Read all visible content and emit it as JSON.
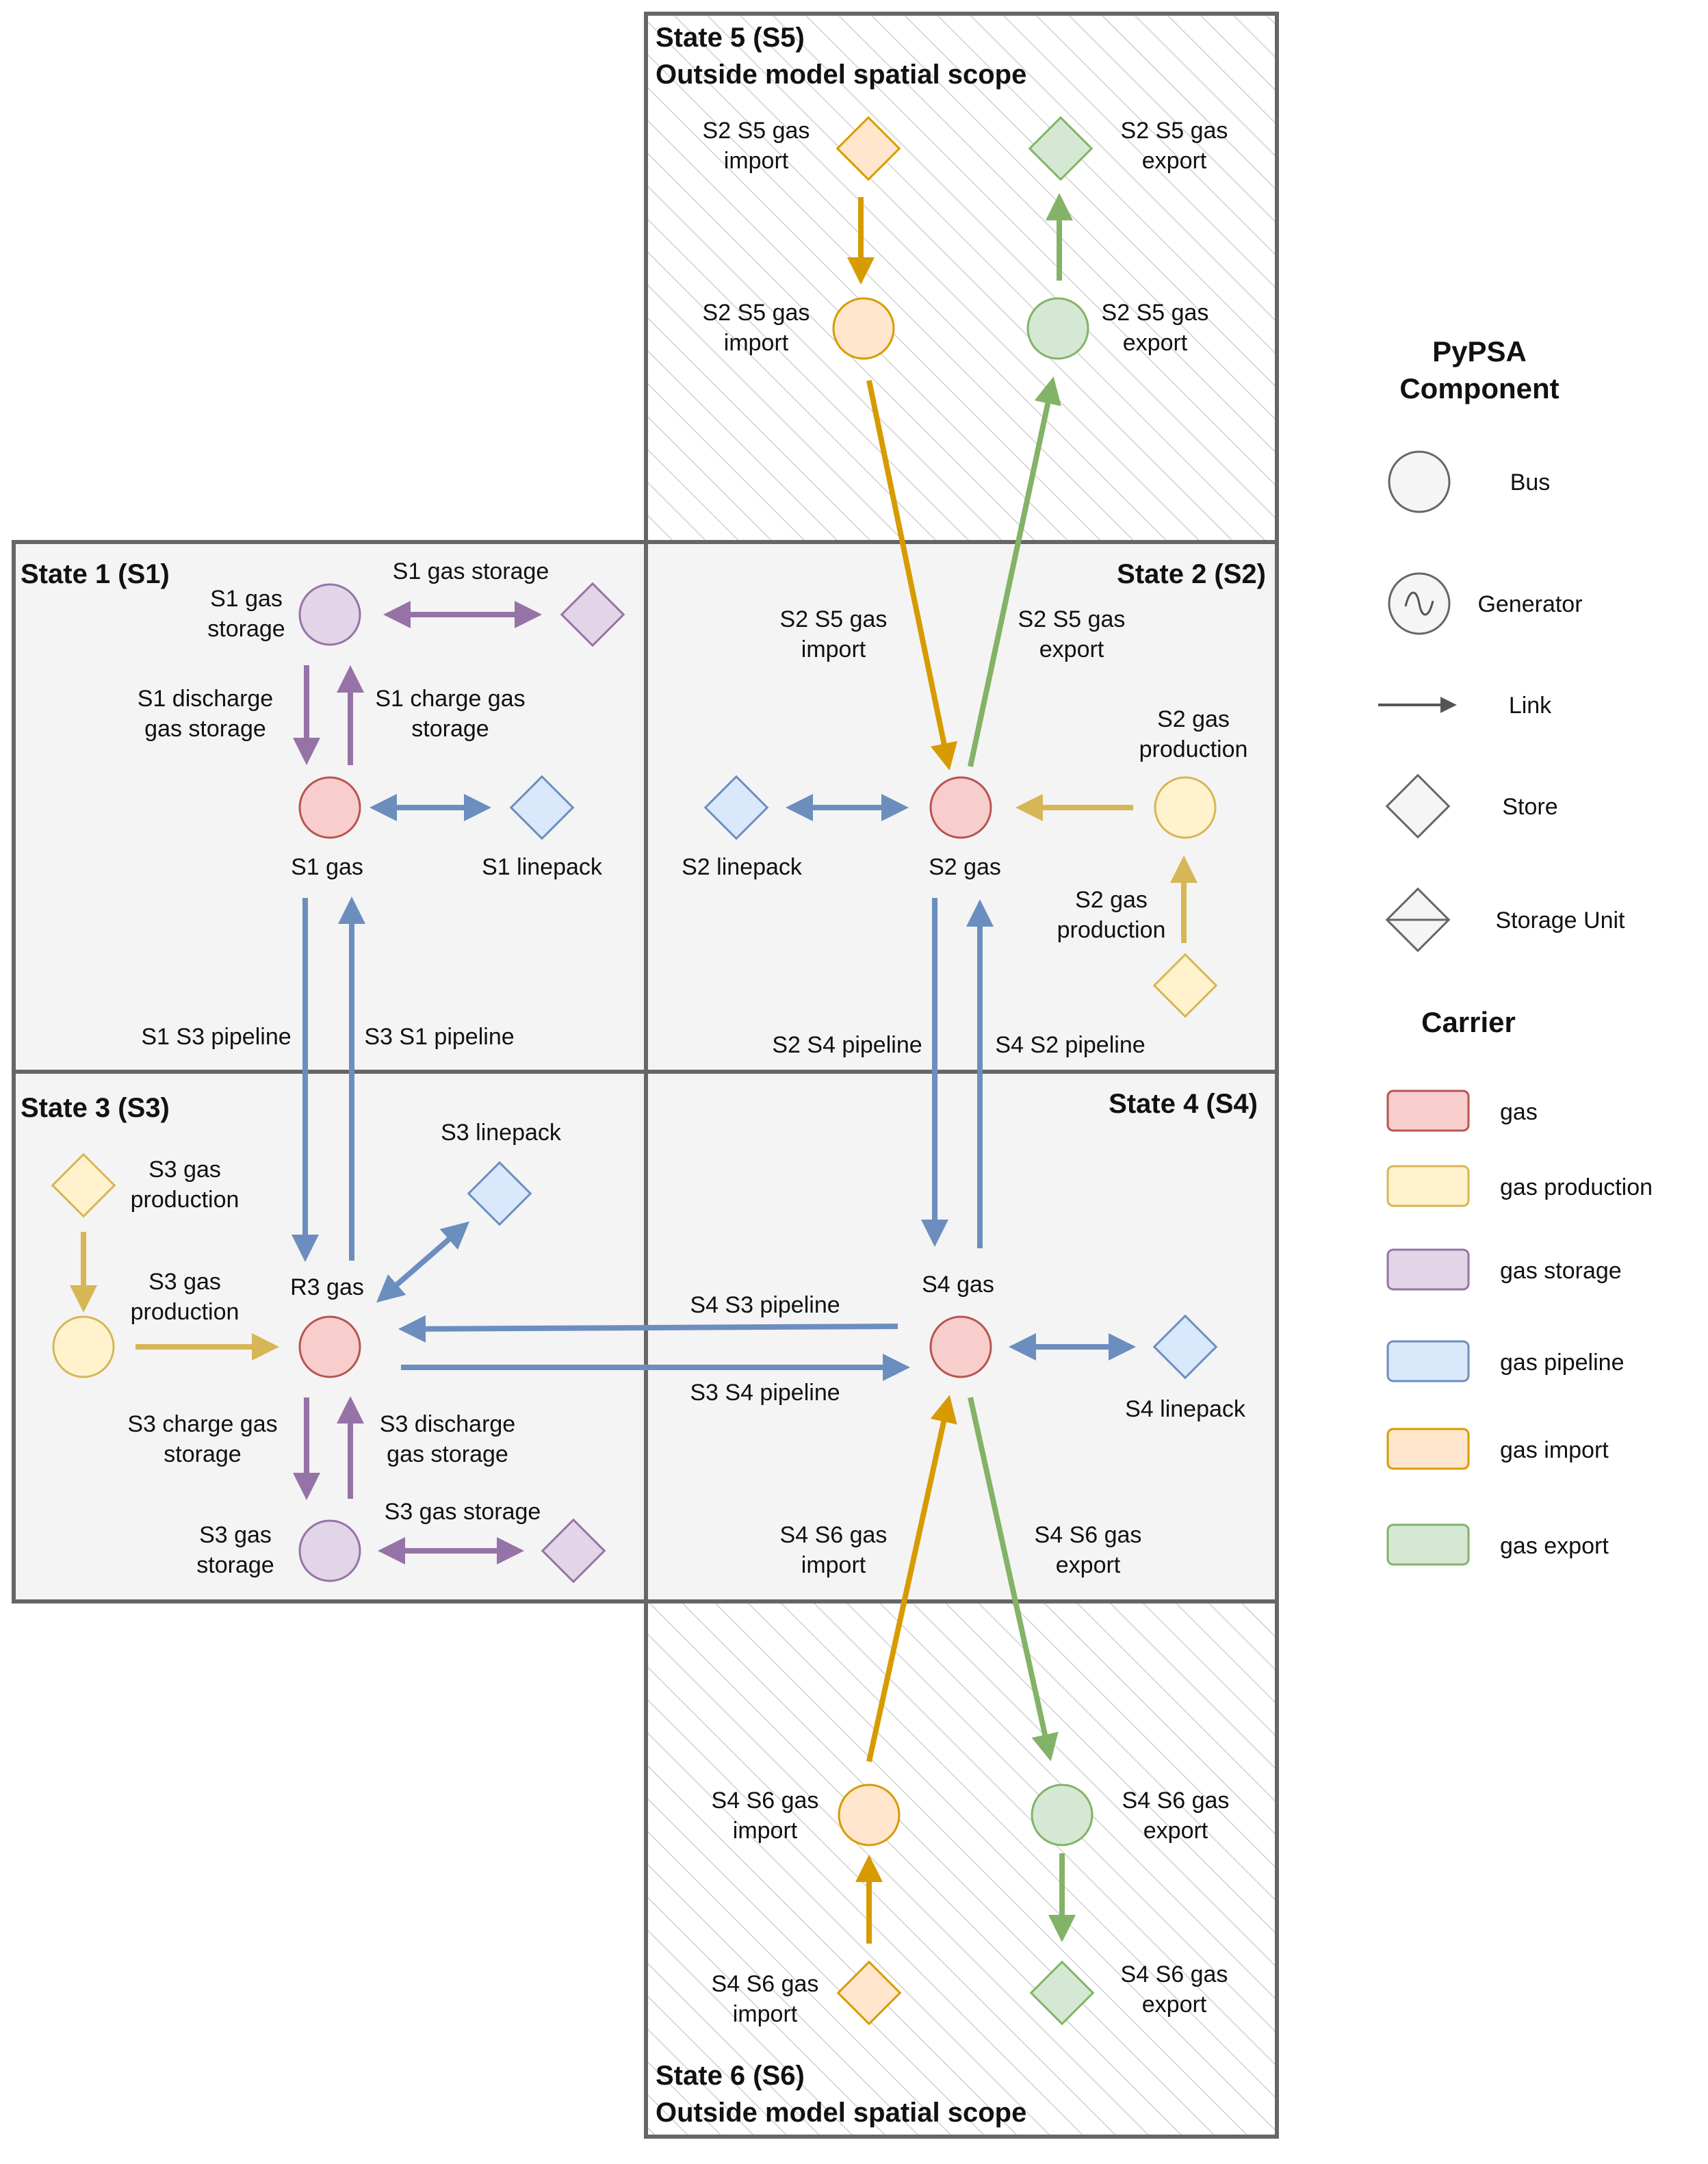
{
  "colors": {
    "gas": {
      "fill": "#f8cecc",
      "stroke": "#b85450"
    },
    "gas_production": {
      "fill": "#fff2cc",
      "stroke": "#d6b656"
    },
    "gas_storage": {
      "fill": "#e1d5e7",
      "stroke": "#9673a6"
    },
    "gas_pipeline": {
      "fill": "#dae8fc",
      "stroke": "#6c8ebf"
    },
    "gas_import": {
      "fill": "#ffe6cc",
      "stroke": "#d79b00"
    },
    "gas_export": {
      "fill": "#d5e8d4",
      "stroke": "#82b366"
    },
    "neutral": {
      "fill": "#f5f5f5",
      "stroke": "#666666"
    },
    "region_fill": "#f4f4f4",
    "region_stroke": "#666666",
    "hatch": "#d0d0d0",
    "arrow_pipeline": "#6c8ebf",
    "arrow_storage": "#9673a6",
    "arrow_production": "#d6b656",
    "arrow_import": "#d79b00",
    "arrow_export": "#82b366"
  },
  "regions": {
    "s5": {
      "title1": "State 5 (S5)",
      "title2": "Outside model spatial scope"
    },
    "s1": {
      "title": "State 1 (S1)"
    },
    "s2": {
      "title": "State 2 (S2)"
    },
    "s3": {
      "title": "State 3 (S3)"
    },
    "s4": {
      "title": "State 4 (S4)"
    },
    "s6": {
      "title1": "State 6 (S6)",
      "title2": "Outside model spatial scope"
    }
  },
  "labels": {
    "s5_import_store": [
      "S2 S5 gas",
      "import"
    ],
    "s5_export_store": [
      "S2 S5 gas",
      "export"
    ],
    "s5_import_bus": [
      "S2 S5 gas",
      "import"
    ],
    "s5_export_bus": [
      "S2 S5 gas",
      "export"
    ],
    "s1_storage_bus": [
      "S1 gas",
      "storage"
    ],
    "s1_gas_storage_link": [
      "S1 gas storage"
    ],
    "s1_discharge": [
      "S1 discharge",
      "gas storage"
    ],
    "s1_charge": [
      "S1 charge gas",
      "storage"
    ],
    "s1_gas": [
      "S1 gas"
    ],
    "s1_linepack": [
      "S1 linepack"
    ],
    "s1_s3_pipeline": [
      "S1 S3 pipeline"
    ],
    "s3_s1_pipeline": [
      "S3 S1 pipeline"
    ],
    "s2_s5_import_link": [
      "S2 S5 gas",
      "import"
    ],
    "s2_s5_export_link": [
      "S2 S5 gas",
      "export"
    ],
    "s2_gas_production_bus": [
      "S2 gas",
      "production"
    ],
    "s2_linepack": [
      "S2 linepack"
    ],
    "s2_gas": [
      "S2 gas"
    ],
    "s2_gas_production_link": [
      "S2 gas",
      "production"
    ],
    "s2_s4_pipeline": [
      "S2 S4 pipeline"
    ],
    "s4_s2_pipeline": [
      "S4 S2 pipeline"
    ],
    "s3_gas_production_store": [
      "S3 gas",
      "production"
    ],
    "s3_linepack": [
      "S3 linepack"
    ],
    "s3_gas_production_link": [
      "S3 gas",
      "production"
    ],
    "r3_gas": [
      "R3 gas"
    ],
    "s3_charge": [
      "S3 charge gas",
      "storage"
    ],
    "s3_discharge": [
      "S3 discharge",
      "gas storage"
    ],
    "s3_storage_bus": [
      "S3 gas",
      "storage"
    ],
    "s3_gas_storage_link": [
      "S3 gas storage"
    ],
    "s4_gas": [
      "S4 gas"
    ],
    "s4_s3_pipeline": [
      "S4 S3 pipeline"
    ],
    "s3_s4_pipeline": [
      "S3 S4 pipeline"
    ],
    "s4_linepack": [
      "S4 linepack"
    ],
    "s4_s6_import_link": [
      "S4 S6 gas",
      "import"
    ],
    "s4_s6_export_link": [
      "S4 S6 gas",
      "export"
    ],
    "s6_import_bus": [
      "S4 S6 gas",
      "import"
    ],
    "s6_export_bus": [
      "S4 S6 gas",
      "export"
    ],
    "s6_import_store": [
      "S4 S6 gas",
      "import"
    ],
    "s6_export_store": [
      "S4 S6 gas",
      "export"
    ]
  },
  "legend": {
    "component_title": [
      "PyPSA",
      "Component"
    ],
    "components": [
      "Bus",
      "Generator",
      "Link",
      "Store",
      "Storage Unit"
    ],
    "carrier_title": "Carrier",
    "carriers": [
      {
        "label": "gas",
        "key": "gas"
      },
      {
        "label": "gas production",
        "key": "gas_production"
      },
      {
        "label": "gas storage",
        "key": "gas_storage"
      },
      {
        "label": "gas pipeline",
        "key": "gas_pipeline"
      },
      {
        "label": "gas import",
        "key": "gas_import"
      },
      {
        "label": "gas export",
        "key": "gas_export"
      }
    ]
  }
}
